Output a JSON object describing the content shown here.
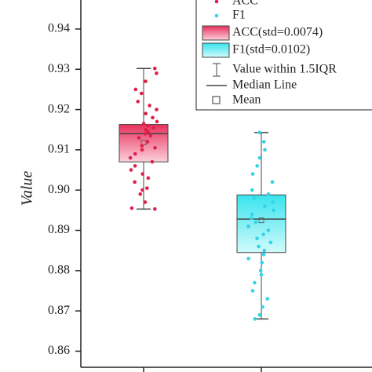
{
  "chart_data": {
    "type": "box",
    "y_label": "Value",
    "ylim": [
      0.856,
      0.9472
    ],
    "yticks": [
      0.86,
      0.87,
      0.88,
      0.89,
      {
        "value": 0.9,
        "label": "0.90"
      },
      0.91,
      0.92,
      0.93,
      0.94
    ],
    "series": [
      {
        "name": "ACC",
        "legend_label": "ACC(std=0.0074)",
        "color": "#e8305a",
        "light": "#fbd0dc",
        "point_color": "#e0204a",
        "whisker_low": 0.8953,
        "q1": 0.907,
        "median": 0.914,
        "q3": 0.9163,
        "whisker_high": 0.9302,
        "mean": 0.9118,
        "points": [
          0.8953,
          0.8955,
          0.897,
          0.899,
          0.9,
          0.9005,
          0.902,
          0.903,
          0.904,
          0.905,
          0.906,
          0.907,
          0.908,
          0.909,
          0.91,
          0.9105,
          0.911,
          0.912,
          0.913,
          0.9135,
          0.914,
          0.9145,
          0.915,
          0.9155,
          0.916,
          0.9165,
          0.917,
          0.918,
          0.919,
          0.92,
          0.921,
          0.922,
          0.924,
          0.925,
          0.927,
          0.929,
          0.9302
        ]
      },
      {
        "name": "F1",
        "legend_label": "F1(std=0.0102)",
        "color": "#38e4ee",
        "light": "#d2fafc",
        "point_color": "#30d4e6",
        "whisker_low": 0.868,
        "q1": 0.8845,
        "median": 0.8928,
        "q3": 0.8988,
        "whisker_high": 0.9143,
        "mean": 0.8925,
        "points": [
          0.868,
          0.869,
          0.871,
          0.873,
          0.875,
          0.877,
          0.879,
          0.88,
          0.882,
          0.883,
          0.884,
          0.885,
          0.886,
          0.887,
          0.888,
          0.889,
          0.89,
          0.891,
          0.892,
          0.893,
          0.894,
          0.895,
          0.896,
          0.897,
          0.898,
          0.899,
          0.9,
          0.902,
          0.904,
          0.906,
          0.908,
          0.91,
          0.912,
          0.9143
        ]
      }
    ],
    "legend": {
      "whisker": "Value within 1.5IQR",
      "median": "Median Line",
      "mean": "Mean"
    }
  }
}
